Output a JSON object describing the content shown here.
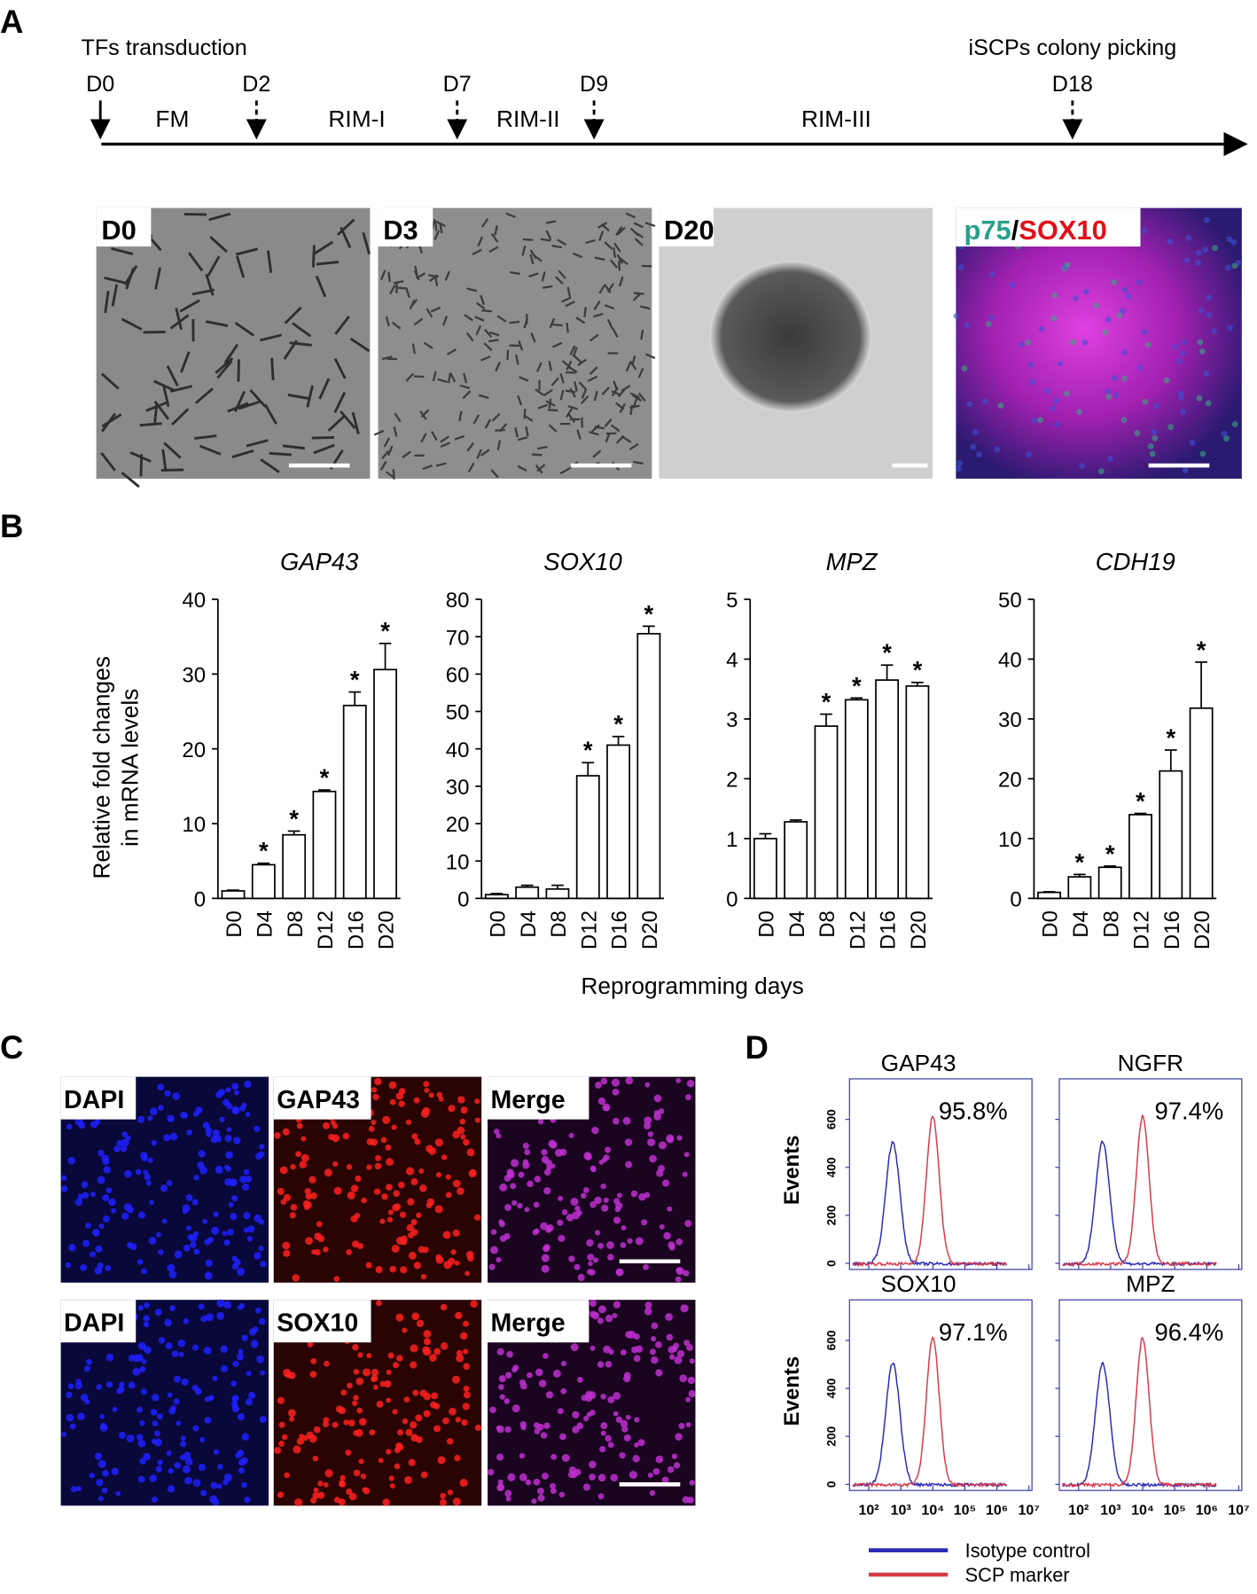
{
  "panel_labels": [
    "A",
    "B",
    "C",
    "D"
  ],
  "timeline": {
    "start_note": "TFs transduction",
    "end_note": "iSCPs colony picking",
    "days": [
      "D0",
      "D2",
      "D7",
      "D9",
      "D18"
    ],
    "stages": [
      "FM",
      "RIM-I",
      "RIM-II",
      "RIM-III"
    ]
  },
  "micrographs": [
    {
      "label": "D0"
    },
    {
      "label": "D3"
    },
    {
      "label": "D20"
    },
    {
      "label_parts": [
        "p75",
        "/",
        "SOX10"
      ]
    }
  ],
  "shared_ylabel": [
    "Relative fold changes",
    "in mRNA levels"
  ],
  "shared_xlabel": "Reprogramming days",
  "chart_data": [
    {
      "type": "bar",
      "title": "GAP43",
      "categories": [
        "D0",
        "D4",
        "D8",
        "D12",
        "D16",
        "D20"
      ],
      "values": [
        1,
        4.5,
        8.5,
        14.3,
        25.8,
        30.6
      ],
      "errors": [
        0.1,
        0.2,
        0.5,
        0.2,
        1.8,
        3.5
      ],
      "markers": [
        null,
        "*",
        "*",
        "*",
        "*",
        "*"
      ],
      "color": "#ffffff",
      "ylim": [
        0,
        40
      ],
      "yticks": [
        0,
        10,
        20,
        30,
        40
      ]
    },
    {
      "type": "bar",
      "title": "SOX10",
      "categories": [
        "D0",
        "D4",
        "D8",
        "D12",
        "D16",
        "D20"
      ],
      "values": [
        1,
        3,
        2.5,
        32.8,
        41,
        70.8
      ],
      "errors": [
        0.3,
        0.5,
        1,
        3.5,
        2.3,
        2
      ],
      "markers": [
        null,
        null,
        null,
        "*",
        "*",
        "*"
      ],
      "color": "#ffffff",
      "ylim": [
        0,
        80
      ],
      "yticks": [
        0,
        10,
        20,
        30,
        40,
        50,
        60,
        70,
        80
      ]
    },
    {
      "type": "bar",
      "title": "MPZ",
      "categories": [
        "D0",
        "D4",
        "D8",
        "D12",
        "D16",
        "D20"
      ],
      "values": [
        1,
        1.28,
        2.88,
        3.32,
        3.65,
        3.55
      ],
      "errors": [
        0.08,
        0.03,
        0.2,
        0.03,
        0.25,
        0.06
      ],
      "markers": [
        null,
        null,
        "*",
        "*",
        "*",
        "*"
      ],
      "color": "#ffffff",
      "ylim": [
        0,
        5
      ],
      "yticks": [
        0,
        1,
        2,
        3,
        4,
        5
      ]
    },
    {
      "type": "bar",
      "title": "CDH19",
      "categories": [
        "D0",
        "D4",
        "D8",
        "D12",
        "D16",
        "D20"
      ],
      "values": [
        1,
        3.6,
        5.2,
        14,
        21.3,
        31.8
      ],
      "errors": [
        0.1,
        0.4,
        0.2,
        0.2,
        3.5,
        7.7
      ],
      "markers": [
        null,
        "*",
        "*",
        "*",
        "*",
        "*"
      ],
      "color": "#ffffff",
      "ylim": [
        0,
        50
      ],
      "yticks": [
        0,
        10,
        20,
        30,
        40,
        50
      ]
    }
  ],
  "staining": {
    "rows": [
      [
        "DAPI",
        "GAP43",
        "Merge"
      ],
      [
        "DAPI",
        "SOX10",
        "Merge"
      ]
    ]
  },
  "flow": {
    "ylabel": "Events",
    "yticks": [
      0,
      200,
      400,
      600
    ],
    "xticks": [
      {
        "value": 100,
        "label": "10²"
      },
      {
        "value": 1000,
        "label": "10³"
      },
      {
        "value": 10000,
        "label": "10⁴"
      },
      {
        "value": 100000,
        "label": "10⁵"
      },
      {
        "value": 1000000,
        "label": "10⁶"
      },
      {
        "value": 10000000,
        "label": "10⁷"
      }
    ],
    "panels": [
      {
        "title": "GAP43",
        "percent": "95.8%"
      },
      {
        "title": "NGFR",
        "percent": "97.4%"
      },
      {
        "title": "SOX10",
        "percent": "97.1%"
      },
      {
        "title": "MPZ",
        "percent": "96.4%"
      }
    ],
    "legend": [
      {
        "name": "Isotype control",
        "color": "#2b2bb8"
      },
      {
        "name": "SCP marker",
        "color": "#d83a4a"
      }
    ]
  }
}
